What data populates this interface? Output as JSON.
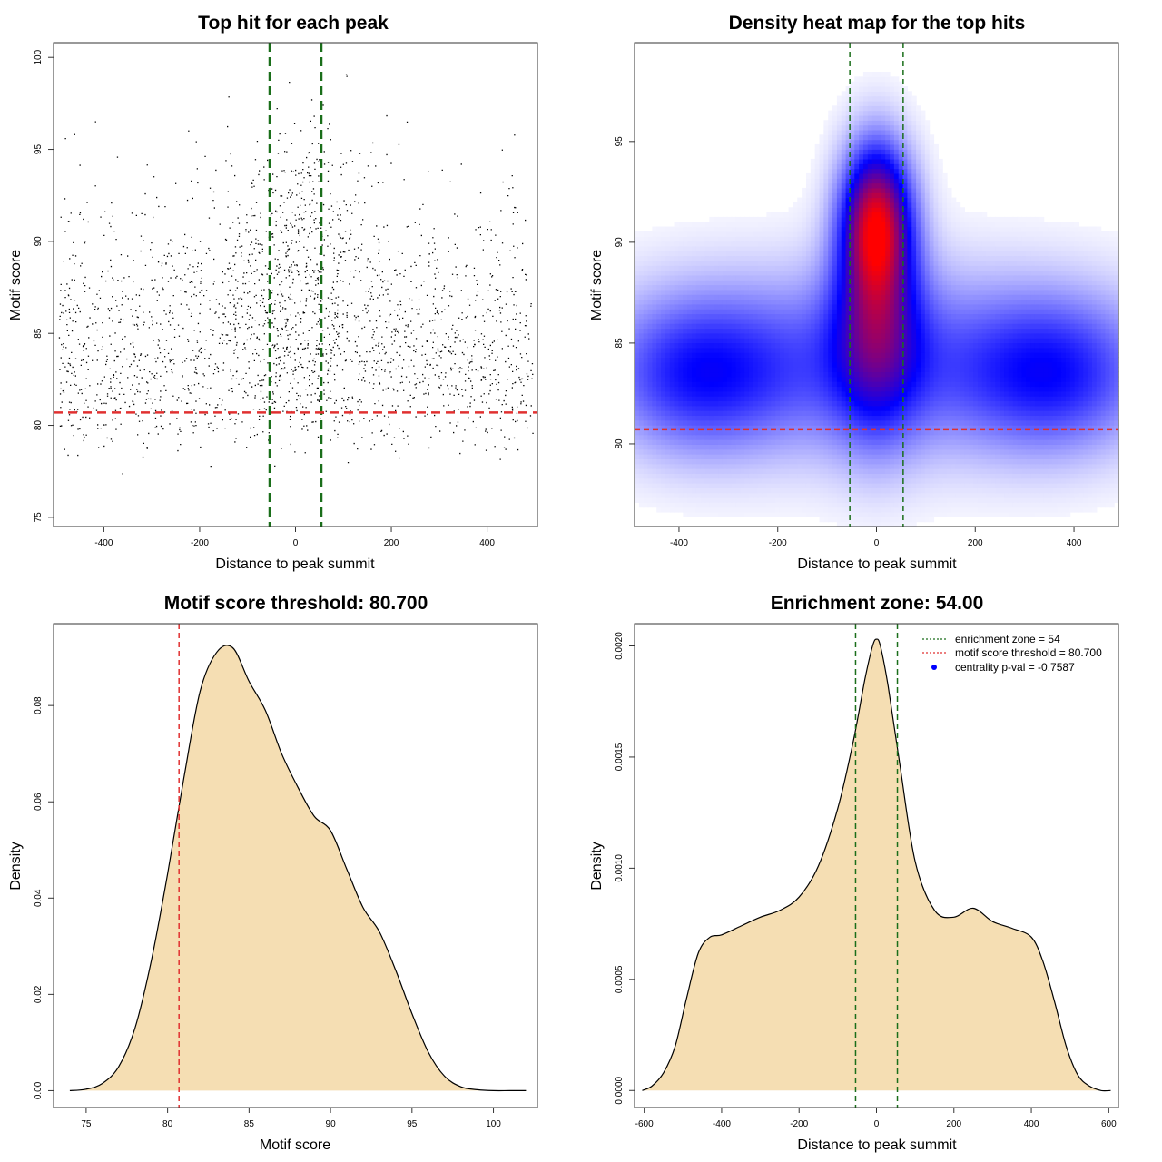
{
  "chart_data": [
    {
      "type": "scatter",
      "title": "Top hit for each peak",
      "xlabel": "Distance to peak summit",
      "ylabel": "Motif score",
      "xlim": [
        -505,
        505
      ],
      "ylim": [
        74.5,
        100.8
      ],
      "xticks": [
        -400,
        -200,
        0,
        200,
        400
      ],
      "yticks": [
        75,
        80,
        85,
        90,
        95,
        100
      ],
      "point_color": "#000000",
      "generated_points": {
        "count": 5200,
        "x_range": [
          -495,
          495
        ],
        "central_cluster": {
          "x_center": 0,
          "x_spread": 70,
          "y_center": 90.5,
          "y_spread": 3
        }
      },
      "hlines": [
        {
          "y": 80.7,
          "color": "#e03030",
          "style": "dashed"
        }
      ],
      "vlines": [
        {
          "x": -54,
          "color": "#1a6e1a",
          "style": "dashed"
        },
        {
          "x": 54,
          "color": "#1a6e1a",
          "style": "dashed"
        }
      ]
    },
    {
      "type": "heatmap",
      "title": "Density heat map for the top hits",
      "xlabel": "Distance to peak summit",
      "ylabel": "Motif score",
      "xlim": [
        -490,
        490
      ],
      "ylim": [
        75.9,
        99.9
      ],
      "xticks": [
        -400,
        -200,
        0,
        200,
        400
      ],
      "yticks": [
        80,
        85,
        90,
        95
      ],
      "colors": [
        "#ffffff",
        "#0000ff",
        "#ff0000"
      ],
      "density_components": [
        {
          "x": 0,
          "y": 91,
          "sx": 45,
          "sy": 2.5,
          "w": 1.0
        },
        {
          "x": 0,
          "y": 86,
          "sx": 60,
          "sy": 3.5,
          "w": 0.55
        },
        {
          "x": -360,
          "y": 83.5,
          "sx": 120,
          "sy": 2.5,
          "w": 0.35
        },
        {
          "x": 360,
          "y": 83.5,
          "sx": 120,
          "sy": 2.5,
          "w": 0.35
        },
        {
          "x": 0,
          "y": 84,
          "sx": 300,
          "sy": 3,
          "w": 0.3
        }
      ],
      "hlines": [
        {
          "y": 80.7,
          "color": "#e03030",
          "style": "dashed"
        }
      ],
      "vlines": [
        {
          "x": -54,
          "color": "#1a6e1a",
          "style": "dashed"
        },
        {
          "x": 54,
          "color": "#1a6e1a",
          "style": "dashed"
        }
      ]
    },
    {
      "type": "area",
      "title": "Motif score threshold: 80.700",
      "xlabel": "Motif score",
      "ylabel": "Density",
      "xlim": [
        73,
        102.7
      ],
      "ylim": [
        -0.0035,
        0.097
      ],
      "xticks": [
        75,
        80,
        85,
        90,
        95,
        100
      ],
      "yticks": [
        0.0,
        0.02,
        0.04,
        0.06,
        0.08
      ],
      "ytick_labels": [
        "0.00",
        "0.02",
        "0.04",
        "0.06",
        "0.08"
      ],
      "fill_color": "#f5deb3",
      "line_color": "#000000",
      "x": [
        74,
        75,
        76,
        77,
        78,
        79,
        80,
        81,
        82,
        83,
        84,
        85,
        86,
        87,
        88,
        89,
        90,
        91,
        92,
        93,
        94,
        95,
        96,
        97,
        98,
        99,
        100,
        101,
        102
      ],
      "y": [
        0.0,
        0.0003,
        0.0015,
        0.005,
        0.013,
        0.027,
        0.045,
        0.065,
        0.083,
        0.091,
        0.092,
        0.085,
        0.079,
        0.07,
        0.063,
        0.057,
        0.054,
        0.046,
        0.038,
        0.033,
        0.025,
        0.016,
        0.008,
        0.003,
        0.0008,
        0.0002,
        0.0,
        0.0,
        0.0
      ],
      "vlines": [
        {
          "x": 80.7,
          "color": "#e03030",
          "style": "dashed"
        }
      ]
    },
    {
      "type": "area",
      "title": "Enrichment zone: 54.00",
      "xlabel": "Distance to peak summit",
      "ylabel": "Density",
      "xlim": [
        -625,
        625
      ],
      "ylim": [
        -7.65e-05,
        0.0021
      ],
      "xticks": [
        -600,
        -400,
        -200,
        0,
        200,
        400,
        600
      ],
      "yticks": [
        0.0,
        0.0005,
        0.001,
        0.0015,
        0.002
      ],
      "ytick_labels": [
        "0.0000",
        "0.0005",
        "0.0010",
        "0.0015",
        "0.0020"
      ],
      "fill_color": "#f5deb3",
      "line_color": "#000000",
      "x": [
        -605,
        -580,
        -550,
        -520,
        -490,
        -460,
        -430,
        -400,
        -350,
        -300,
        -250,
        -200,
        -150,
        -100,
        -60,
        -30,
        -10,
        0,
        10,
        30,
        60,
        100,
        150,
        200,
        250,
        300,
        350,
        400,
        430,
        460,
        490,
        520,
        550,
        580,
        605
      ],
      "y": [
        0.0,
        2e-05,
        8e-05,
        0.0002,
        0.00042,
        0.00062,
        0.00069,
        0.0007,
        0.00074,
        0.00078,
        0.00081,
        0.00087,
        0.00101,
        0.00127,
        0.00157,
        0.00185,
        0.002,
        0.00203,
        0.002,
        0.00182,
        0.00147,
        0.00103,
        0.00081,
        0.00078,
        0.00082,
        0.00076,
        0.00073,
        0.00069,
        0.00058,
        0.0004,
        0.0002,
        7e-05,
        2e-05,
        0.0,
        0.0
      ],
      "vlines": [
        {
          "x": -54,
          "color": "#1a6e1a",
          "style": "dashed"
        },
        {
          "x": 54,
          "color": "#1a6e1a",
          "style": "dashed"
        }
      ],
      "legend": {
        "position": "top-right",
        "entries": [
          {
            "label": "enrichment zone = 54",
            "color": "#1a6e1a",
            "kind": "dotted-line"
          },
          {
            "label": "motif score threshold = 80.700",
            "color": "#e03030",
            "kind": "dotted-line"
          },
          {
            "label": "centrality p-val = -0.7587",
            "color": "#0000ff",
            "kind": "point"
          }
        ]
      }
    }
  ]
}
